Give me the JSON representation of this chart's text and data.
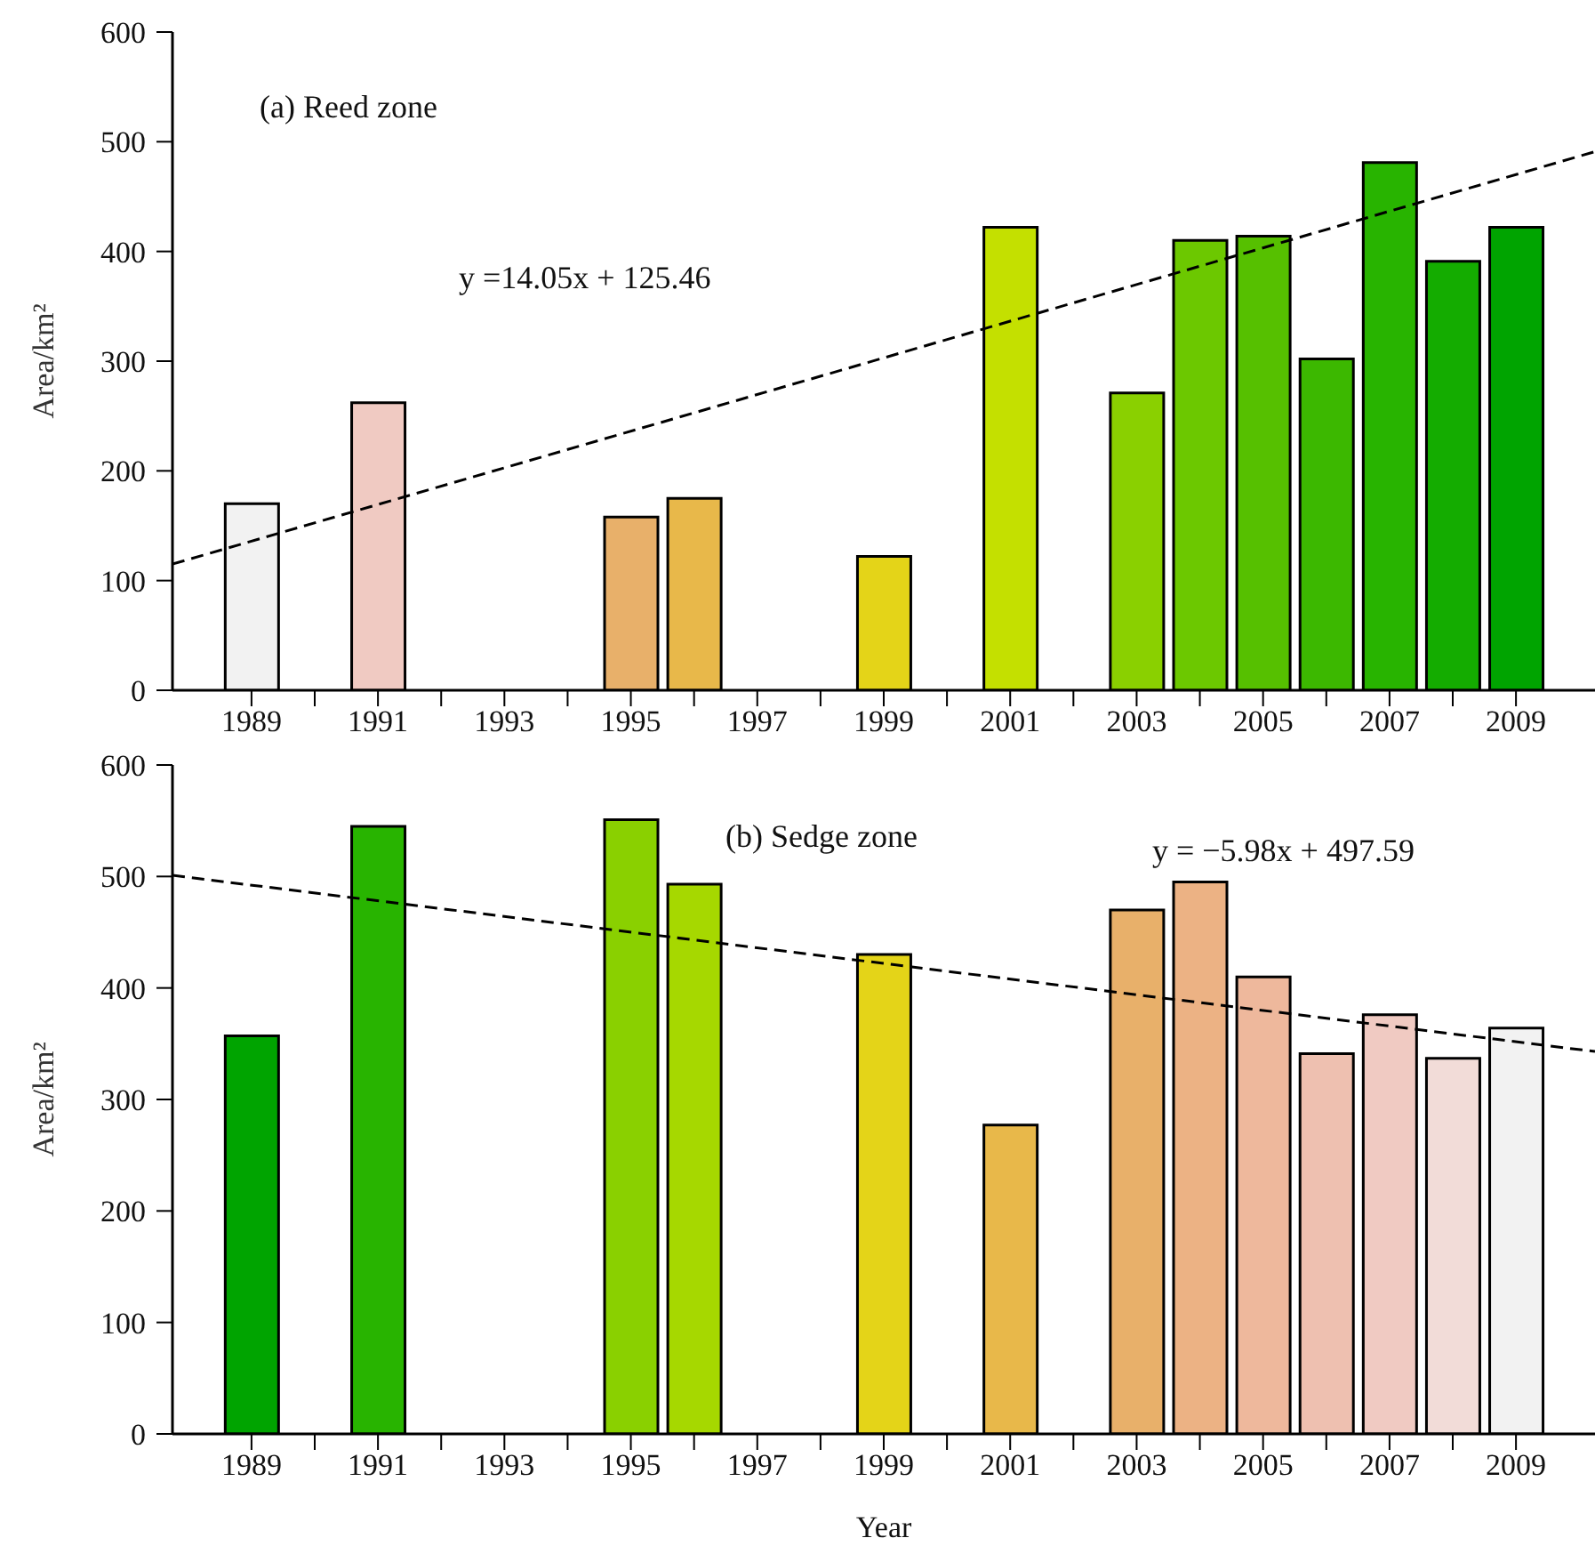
{
  "chart_data": [
    {
      "type": "bar",
      "title": "(a) Reed zone",
      "ylabel": "Area/km²",
      "annotations": [
        "y =14.05x + 125.46"
      ],
      "xlim": [
        1987.75,
        2010.25
      ],
      "xticks": [
        1989,
        {
          "value": 1990,
          "label": null
        },
        1991,
        {
          "value": 1992,
          "label": null
        },
        1993,
        {
          "value": 1994,
          "label": null
        },
        1995,
        {
          "value": 1996,
          "label": null
        },
        1997,
        {
          "value": 1998,
          "label": null
        },
        1999,
        {
          "value": 2000,
          "label": null
        },
        2001,
        {
          "value": 2002,
          "label": null
        },
        2003,
        {
          "value": 2004,
          "label": null
        },
        2005,
        {
          "value": 2006,
          "label": null
        },
        2007,
        {
          "value": 2008,
          "label": null
        },
        2009
      ],
      "ylim": [
        0,
        600
      ],
      "yticks": [
        0,
        100,
        200,
        300,
        400,
        500,
        600
      ],
      "grid": false,
      "legend": false,
      "series": [
        {
          "x": [
            1989,
            1991,
            1995,
            1996,
            1999,
            2001,
            2003,
            2004,
            2005,
            2006,
            2007,
            2008,
            2009
          ],
          "values": [
            170,
            262,
            158,
            175,
            122,
            422,
            271,
            410,
            414,
            302,
            481,
            391,
            422
          ],
          "colors": [
            "#f2f2f2",
            "#f0cac2",
            "#e8b06a",
            "#e8b84a",
            "#e4d418",
            "#c4e000",
            "#8ad000",
            "#6cc800",
            "#56c000",
            "#3cb800",
            "#28b400",
            "#14ac00",
            "#00a400"
          ]
        },
        {
          "type": "line",
          "x": [
            1987.75,
            2010.25
          ],
          "values": [
            115,
            491
          ],
          "color": "#000000",
          "line_style": "dashed",
          "marker": "none"
        }
      ]
    },
    {
      "type": "bar",
      "title": "(b) Sedge zone",
      "xlabel": "Year",
      "ylabel": "Area/km²",
      "annotations": [
        "y = −5.98x + 497.59"
      ],
      "xlim": [
        1987.75,
        2010.25
      ],
      "xticks": [
        1989,
        {
          "value": 1990,
          "label": null
        },
        1991,
        {
          "value": 1992,
          "label": null
        },
        1993,
        {
          "value": 1994,
          "label": null
        },
        1995,
        {
          "value": 1996,
          "label": null
        },
        1997,
        {
          "value": 1998,
          "label": null
        },
        1999,
        {
          "value": 2000,
          "label": null
        },
        2001,
        {
          "value": 2002,
          "label": null
        },
        2003,
        {
          "value": 2004,
          "label": null
        },
        2005,
        {
          "value": 2006,
          "label": null
        },
        2007,
        {
          "value": 2008,
          "label": null
        },
        2009
      ],
      "ylim": [
        0,
        600
      ],
      "yticks": [
        0,
        100,
        200,
        300,
        400,
        500,
        600
      ],
      "grid": false,
      "legend": false,
      "series": [
        {
          "x": [
            1989,
            1991,
            1995,
            1996,
            1999,
            2001,
            2003,
            2004,
            2005,
            2006,
            2007,
            2008,
            2009
          ],
          "values": [
            357,
            545,
            551,
            493,
            430,
            277,
            470,
            495,
            410,
            341,
            376,
            337,
            364
          ],
          "colors": [
            "#00a400",
            "#28b400",
            "#8ad000",
            "#a6d800",
            "#e4d418",
            "#e8b84a",
            "#e8b06a",
            "#ecb284",
            "#eeb89c",
            "#eec0b0",
            "#f0cac2",
            "#f2dcd8",
            "#f2f2f2"
          ]
        },
        {
          "type": "line",
          "x": [
            1987.75,
            2010.25
          ],
          "values": [
            501,
            343
          ],
          "color": "#000000",
          "line_style": "dashed",
          "marker": "none"
        }
      ]
    }
  ]
}
